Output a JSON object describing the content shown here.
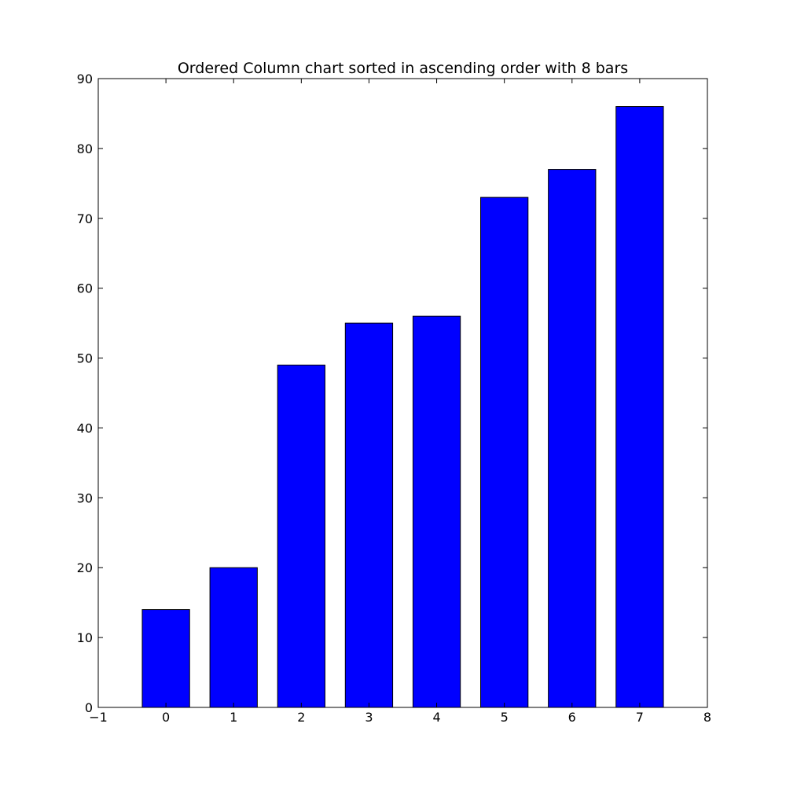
{
  "chart_data": {
    "type": "bar",
    "title": "Ordered Column chart sorted in ascending order with 8 bars",
    "xlabel": "",
    "ylabel": "",
    "categories": [
      "0",
      "1",
      "2",
      "3",
      "4",
      "5",
      "6",
      "7"
    ],
    "values": [
      14,
      20,
      49,
      55,
      56,
      73,
      77,
      86
    ],
    "xlim": [
      -1,
      8
    ],
    "ylim": [
      0,
      90
    ],
    "xticks": [
      "−1",
      "0",
      "1",
      "2",
      "3",
      "4",
      "5",
      "6",
      "7",
      "8"
    ],
    "yticks": [
      "0",
      "10",
      "20",
      "30",
      "40",
      "50",
      "60",
      "70",
      "80",
      "90"
    ],
    "grid": false,
    "bar_color": "#0000ff",
    "edge_color": "#000000"
  }
}
